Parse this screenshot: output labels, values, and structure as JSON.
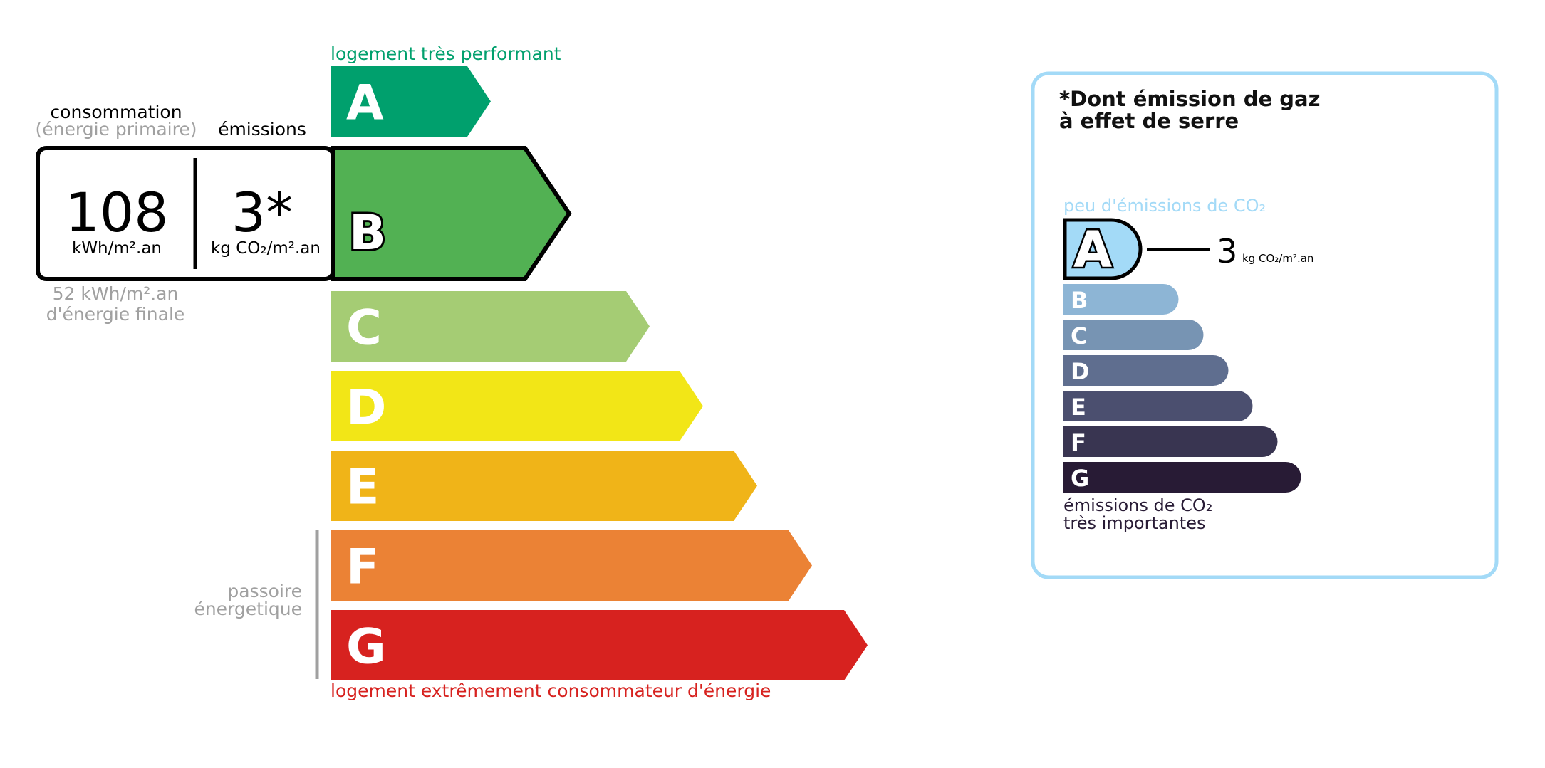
{
  "energy": {
    "top_label": "logement très performant",
    "bottom_label": "logement extrêmement consommateur d'énergie",
    "passoire_line1": "passoire",
    "passoire_line2": "énergetique",
    "consumption_label": "consommation",
    "consumption_sublabel": "(énergie primaire)",
    "emissions_label": "émissions",
    "consumption_value": "108",
    "consumption_unit": "kWh/m².an",
    "emissions_value": "3*",
    "emissions_unit": "kg CO₂/m².an",
    "final_energy_line1": "52 kWh/m².an",
    "final_energy_line2": "d'énergie finale",
    "current_class": "B",
    "classes": [
      {
        "letter": "A",
        "color": "#00a06d"
      },
      {
        "letter": "B",
        "color": "#52b153"
      },
      {
        "letter": "C",
        "color": "#a5cc74"
      },
      {
        "letter": "D",
        "color": "#f2e617"
      },
      {
        "letter": "E",
        "color": "#f0b418"
      },
      {
        "letter": "F",
        "color": "#eb8235"
      },
      {
        "letter": "G",
        "color": "#d7221f"
      }
    ]
  },
  "ghg": {
    "title_line1": "*Dont émission de gaz",
    "title_line2": "à effet de serre",
    "top_label": "peu d'émissions de CO₂",
    "bottom_line1": "émissions de CO₂",
    "bottom_line2": "très importantes",
    "value": "3",
    "unit": "kg CO₂/m².an",
    "current_class": "A",
    "border_color": "#a3daf7",
    "classes": [
      {
        "letter": "A",
        "color": "#a3daf7"
      },
      {
        "letter": "B",
        "color": "#8db5d5"
      },
      {
        "letter": "C",
        "color": "#7794b3"
      },
      {
        "letter": "D",
        "color": "#5f6e8f"
      },
      {
        "letter": "E",
        "color": "#4b4f6f"
      },
      {
        "letter": "F",
        "color": "#393551"
      },
      {
        "letter": "G",
        "color": "#281b35"
      }
    ]
  }
}
